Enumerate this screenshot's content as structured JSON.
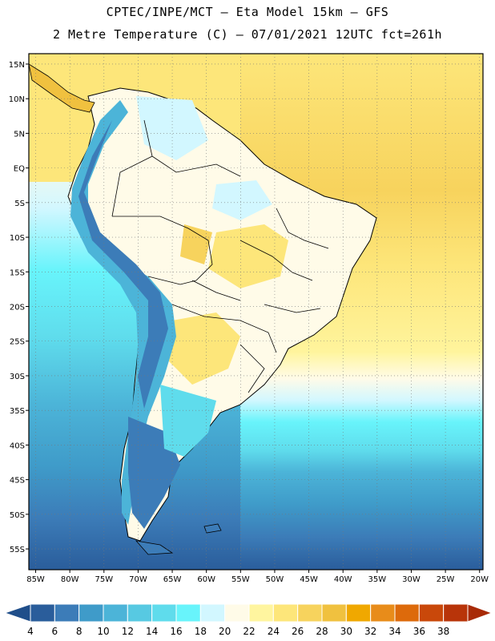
{
  "header": {
    "line1": "CPTEC/INPE/MCT –  Eta Model 15km – GFS",
    "line2": "2 Metre Temperature (C) – 07/01/2021 12UTC fct=261h"
  },
  "axes": {
    "lat_labels": [
      "15N",
      "10N",
      "5N",
      "EQ",
      "5S",
      "10S",
      "15S",
      "20S",
      "25S",
      "30S",
      "35S",
      "40S",
      "45S",
      "50S",
      "55S"
    ],
    "lat_values": [
      15,
      10,
      5,
      0,
      -5,
      -10,
      -15,
      -20,
      -25,
      -30,
      -35,
      -40,
      -45,
      -50,
      -55
    ],
    "lon_labels": [
      "85W",
      "80W",
      "75W",
      "70W",
      "65W",
      "60W",
      "55W",
      "50W",
      "45W",
      "40W",
      "35W",
      "30W",
      "25W",
      "20W"
    ],
    "lon_values": [
      -85,
      -80,
      -75,
      -70,
      -65,
      -60,
      -55,
      -50,
      -45,
      -40,
      -35,
      -30,
      -25,
      -20
    ],
    "lon_range": [
      -86,
      -19.5
    ],
    "lat_range": [
      -58,
      16.5
    ],
    "grid": true
  },
  "colorbar": {
    "labels": [
      "4",
      "6",
      "8",
      "10",
      "12",
      "14",
      "16",
      "18",
      "20",
      "22",
      "24",
      "26",
      "28",
      "30",
      "32",
      "34",
      "36",
      "38"
    ],
    "colors": [
      "#2a5d9b",
      "#3c7cb8",
      "#3f9bc9",
      "#4cb4d8",
      "#57c9e2",
      "#5fdcec",
      "#68f4fb",
      "#d2f7ff",
      "#fffbe8",
      "#fff59f",
      "#fde67a",
      "#f7d35d",
      "#f0c13f",
      "#f0a800",
      "#e88c1a",
      "#dd6a0b",
      "#c9480a",
      "#b83409"
    ]
  },
  "map_data": {
    "field": "2 Metre Temperature",
    "units": "C",
    "model": "Eta 15km",
    "driver": "GFS",
    "init": "07/01/2021 12UTC",
    "forecast_hour": "261h"
  }
}
